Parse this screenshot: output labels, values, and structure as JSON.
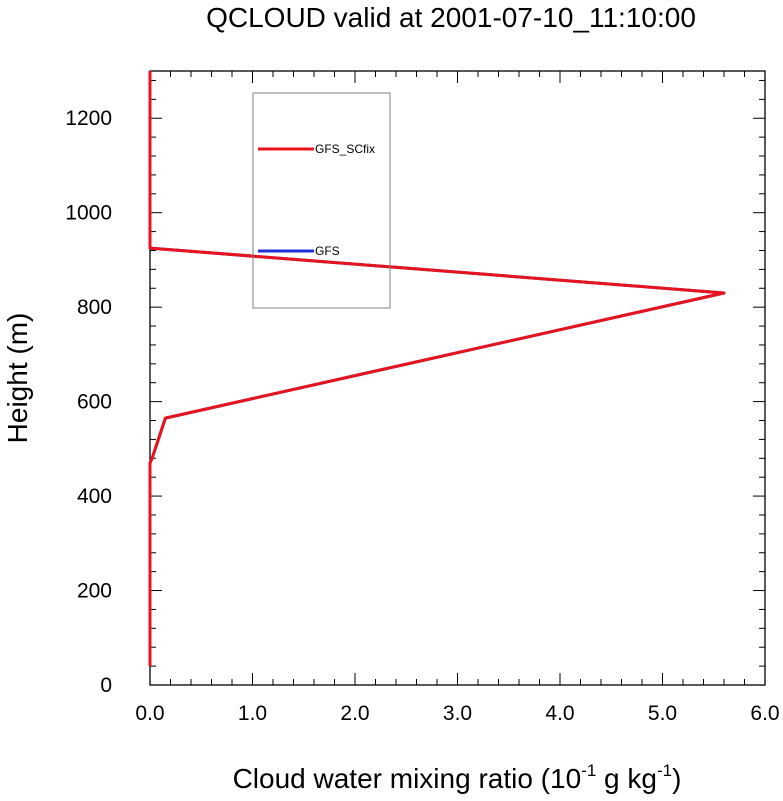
{
  "chart_data": {
    "type": "line",
    "title": "QCLOUD valid at 2001-07-10_11:10:00",
    "xlabel": {
      "base": "Cloud water mixing ratio (10",
      "exp1": "-1",
      "mid": " g kg",
      "exp2": "-1",
      "end": ")"
    },
    "ylabel": "Height (m)",
    "xlim": [
      0,
      6.0
    ],
    "ylim": [
      0,
      1300
    ],
    "xticks": [
      0.0,
      1.0,
      2.0,
      3.0,
      4.0,
      5.0,
      6.0
    ],
    "xtick_labels": [
      "0.0",
      "1.0",
      "2.0",
      "3.0",
      "4.0",
      "5.0",
      "6.0"
    ],
    "yticks": [
      0,
      200,
      400,
      600,
      800,
      1000,
      1200
    ],
    "ytick_labels": [
      "0",
      "200",
      "400",
      "600",
      "800",
      "1000",
      "1200"
    ],
    "grid": false,
    "legend_placement": "upper-left-center",
    "series": [
      {
        "name": "GFS_SCfix",
        "color": "#e8141c",
        "points": [
          [
            0.0,
            40
          ],
          [
            0.0,
            470
          ],
          [
            0.02,
            480
          ],
          [
            0.15,
            565
          ],
          [
            5.6,
            830
          ],
          [
            0.0,
            925
          ],
          [
            0.0,
            1300
          ]
        ]
      },
      {
        "name": "GFS",
        "color": "#1f30d8",
        "points": [
          [
            0.0,
            40
          ],
          [
            0.0,
            470
          ],
          [
            0.02,
            480
          ],
          [
            0.15,
            565
          ],
          [
            5.6,
            830
          ],
          [
            0.0,
            925
          ],
          [
            0.0,
            1300
          ]
        ]
      }
    ]
  }
}
